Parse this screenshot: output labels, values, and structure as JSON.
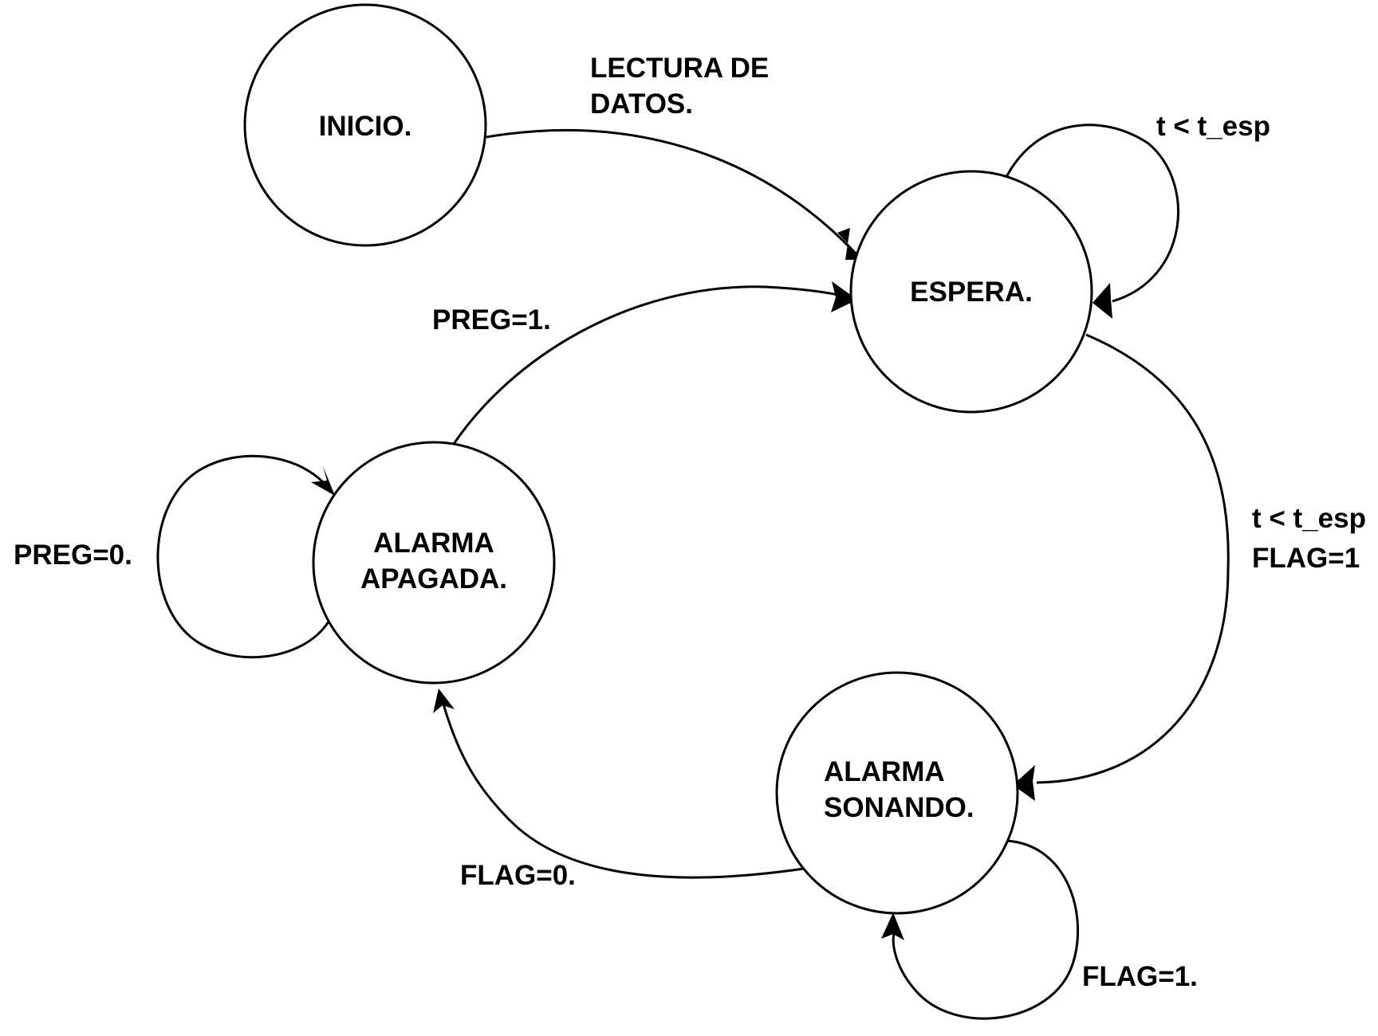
{
  "states": {
    "inicio": {
      "label": "INICIO."
    },
    "espera": {
      "label": "ESPERA."
    },
    "alarma_apagada": {
      "lines": [
        "ALARMA",
        "APAGADA."
      ]
    },
    "alarma_sonando": {
      "lines": [
        "ALARMA",
        "SONANDO."
      ]
    }
  },
  "transitions": {
    "inicio_to_espera": {
      "lines": [
        "LECTURA DE",
        "DATOS."
      ]
    },
    "espera_self": {
      "label": "t < t_esp"
    },
    "espera_to_sonando": {
      "lines": [
        "t < t_esp",
        "FLAG=1"
      ]
    },
    "sonando_self": {
      "label": "FLAG=1."
    },
    "sonando_to_apagada": {
      "label": "FLAG=0."
    },
    "apagada_self": {
      "label": "PREG=0."
    },
    "apagada_to_espera": {
      "label": "PREG=1."
    }
  }
}
